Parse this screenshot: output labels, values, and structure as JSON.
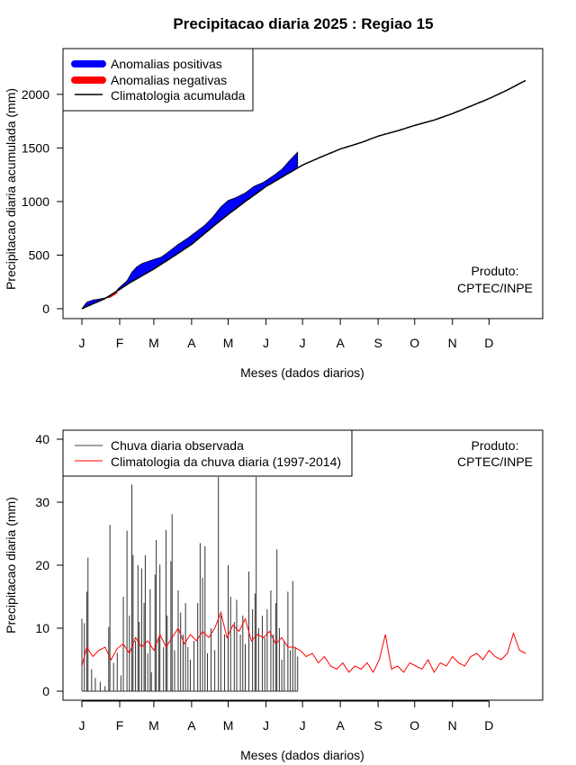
{
  "title": "Precipitacao diaria 2025 : Regiao 15",
  "months": [
    "J",
    "F",
    "M",
    "A",
    "M",
    "J",
    "J",
    "A",
    "S",
    "O",
    "N",
    "D"
  ],
  "credit": [
    "Produto:",
    "CPTEC/INPE"
  ],
  "colors": {
    "positive": "#0000ff",
    "negative": "#ff0000",
    "climatology_line": "#000000",
    "observed_bars": "#000000",
    "daily_climatology": "#ff0000"
  },
  "chart_data": [
    {
      "type": "area",
      "xlabel": "Meses (dados diarios)",
      "ylabel": "Precipitacao diaria acumulada (mm)",
      "ylim": [
        0,
        2200
      ],
      "yticks": [
        0,
        500,
        1000,
        1500,
        2000
      ],
      "xlim": [
        1,
        365
      ],
      "legend_position": "top-left",
      "legend": [
        {
          "label": "Anomalias positivas",
          "style": "thick-blue"
        },
        {
          "label": "Anomalias negativas",
          "style": "thick-red"
        },
        {
          "label": "Climatologia acumulada",
          "style": "thin-black"
        }
      ],
      "climatology_accum": {
        "day": [
          1,
          20,
          32,
          40,
          60,
          75,
          91,
          110,
          121,
          135,
          152,
          170,
          182,
          196,
          213,
          230,
          244,
          260,
          274,
          290,
          305,
          320,
          335,
          350,
          365
        ],
        "value": [
          0,
          95,
          180,
          240,
          370,
          480,
          600,
          780,
          880,
          1000,
          1140,
          1260,
          1340,
          1410,
          1490,
          1550,
          1610,
          1660,
          1710,
          1760,
          1820,
          1890,
          1960,
          2040,
          2130
        ]
      },
      "observed_accum": {
        "day": [
          1,
          5,
          10,
          15,
          20,
          25,
          32,
          38,
          42,
          46,
          50,
          55,
          60,
          66,
          72,
          80,
          88,
          95,
          102,
          108,
          115,
          121,
          128,
          135,
          142,
          150,
          158,
          165,
          172,
          178
        ],
        "value": [
          0,
          60,
          80,
          90,
          100,
          110,
          200,
          260,
          340,
          390,
          420,
          440,
          460,
          480,
          530,
          600,
          660,
          720,
          780,
          850,
          950,
          1010,
          1040,
          1080,
          1140,
          1180,
          1240,
          1300,
          1390,
          1460
        ]
      }
    },
    {
      "type": "bar",
      "xlabel": "Meses (dados diarios)",
      "ylabel": "Precipitacao diaria (mm)",
      "ylim": [
        0,
        40
      ],
      "yticks": [
        0,
        10,
        20,
        30,
        40
      ],
      "xlim": [
        1,
        365
      ],
      "legend_position": "top-left",
      "legend": [
        {
          "label": "Chuva diaria observada",
          "style": "thin-dark"
        },
        {
          "label": "Climatologia da chuva diaria (1997-2014)",
          "style": "thin-red"
        }
      ],
      "observed_daily": [
        {
          "day": 1,
          "value": 11.5
        },
        {
          "day": 3,
          "value": 10.8
        },
        {
          "day": 5,
          "value": 15.8
        },
        {
          "day": 6,
          "value": 21.2
        },
        {
          "day": 9,
          "value": 3.5
        },
        {
          "day": 12,
          "value": 2.1
        },
        {
          "day": 16,
          "value": 1.5
        },
        {
          "day": 20,
          "value": 0.8
        },
        {
          "day": 23,
          "value": 10.2
        },
        {
          "day": 24,
          "value": 26.4
        },
        {
          "day": 27,
          "value": 4.5
        },
        {
          "day": 30,
          "value": 6.1
        },
        {
          "day": 33,
          "value": 2.5
        },
        {
          "day": 35,
          "value": 15.0
        },
        {
          "day": 38,
          "value": 25.5
        },
        {
          "day": 40,
          "value": 12.0
        },
        {
          "day": 42,
          "value": 32.8
        },
        {
          "day": 43,
          "value": 21.6
        },
        {
          "day": 45,
          "value": 8.0
        },
        {
          "day": 47,
          "value": 20.0
        },
        {
          "day": 48,
          "value": 11.0
        },
        {
          "day": 50,
          "value": 19.5
        },
        {
          "day": 52,
          "value": 14.0
        },
        {
          "day": 53,
          "value": 21.6
        },
        {
          "day": 55,
          "value": 6.0
        },
        {
          "day": 57,
          "value": 16.2
        },
        {
          "day": 58,
          "value": 3.0
        },
        {
          "day": 61,
          "value": 18.5
        },
        {
          "day": 62,
          "value": 24.0
        },
        {
          "day": 64,
          "value": 8.5
        },
        {
          "day": 65,
          "value": 20.1
        },
        {
          "day": 68,
          "value": 7.0
        },
        {
          "day": 70,
          "value": 25.6
        },
        {
          "day": 71,
          "value": 12.0
        },
        {
          "day": 74,
          "value": 20.6
        },
        {
          "day": 75,
          "value": 28.1
        },
        {
          "day": 77,
          "value": 6.5
        },
        {
          "day": 80,
          "value": 16.0
        },
        {
          "day": 82,
          "value": 12.5
        },
        {
          "day": 84,
          "value": 9.0
        },
        {
          "day": 86,
          "value": 14.0
        },
        {
          "day": 88,
          "value": 7.0
        },
        {
          "day": 90,
          "value": 5.0
        },
        {
          "day": 93,
          "value": 8.0
        },
        {
          "day": 96,
          "value": 14.0
        },
        {
          "day": 98,
          "value": 23.5
        },
        {
          "day": 100,
          "value": 18.0
        },
        {
          "day": 102,
          "value": 23.0
        },
        {
          "day": 104,
          "value": 6.0
        },
        {
          "day": 107,
          "value": 10.0
        },
        {
          "day": 110,
          "value": 6.5
        },
        {
          "day": 113,
          "value": 34.0
        },
        {
          "day": 115,
          "value": 12.0
        },
        {
          "day": 118,
          "value": 9.0
        },
        {
          "day": 121,
          "value": 20.0
        },
        {
          "day": 123,
          "value": 15.0
        },
        {
          "day": 126,
          "value": 11.0
        },
        {
          "day": 128,
          "value": 14.5
        },
        {
          "day": 131,
          "value": 9.0
        },
        {
          "day": 133,
          "value": 12.0
        },
        {
          "day": 135,
          "value": 7.5
        },
        {
          "day": 138,
          "value": 19.0
        },
        {
          "day": 141,
          "value": 13.0
        },
        {
          "day": 143,
          "value": 15.5
        },
        {
          "day": 144,
          "value": 34.0
        },
        {
          "day": 146,
          "value": 10.0
        },
        {
          "day": 149,
          "value": 12.0
        },
        {
          "day": 151,
          "value": 8.5
        },
        {
          "day": 153,
          "value": 13.0
        },
        {
          "day": 156,
          "value": 16.0
        },
        {
          "day": 158,
          "value": 9.0
        },
        {
          "day": 160,
          "value": 14.0
        },
        {
          "day": 161,
          "value": 22.5
        },
        {
          "day": 163,
          "value": 10.0
        },
        {
          "day": 165,
          "value": 5.0
        },
        {
          "day": 167,
          "value": 8.0
        },
        {
          "day": 170,
          "value": 15.8
        },
        {
          "day": 172,
          "value": 6.5
        },
        {
          "day": 174,
          "value": 17.5
        },
        {
          "day": 176,
          "value": 7.0
        },
        {
          "day": 178,
          "value": 5.5
        }
      ],
      "climatology_daily": {
        "day": [
          1,
          5,
          10,
          15,
          20,
          25,
          30,
          35,
          40,
          45,
          50,
          55,
          60,
          65,
          70,
          75,
          80,
          85,
          90,
          95,
          100,
          105,
          110,
          115,
          120,
          125,
          130,
          135,
          140,
          145,
          150,
          155,
          160,
          165,
          170,
          175,
          180,
          185,
          190,
          195,
          200,
          205,
          210,
          215,
          220,
          225,
          230,
          235,
          240,
          245,
          250,
          255,
          260,
          265,
          270,
          275,
          280,
          285,
          290,
          295,
          300,
          305,
          310,
          315,
          320,
          325,
          330,
          335,
          340,
          345,
          350,
          355,
          360,
          365
        ],
        "value": [
          4.0,
          7.0,
          5.5,
          6.5,
          7.0,
          5.0,
          6.8,
          7.5,
          6.0,
          8.5,
          7.0,
          8.0,
          6.5,
          9.0,
          7.0,
          8.5,
          10.0,
          7.5,
          9.0,
          8.0,
          9.5,
          8.5,
          10.0,
          12.5,
          8.5,
          10.5,
          9.5,
          11.5,
          8.0,
          9.0,
          8.5,
          9.5,
          7.5,
          8.5,
          7.0,
          7.0,
          6.5,
          5.5,
          6.0,
          4.5,
          5.5,
          4.0,
          3.5,
          4.5,
          3.0,
          4.0,
          3.5,
          4.5,
          3.0,
          5.0,
          9.0,
          3.5,
          4.0,
          3.0,
          4.5,
          4.0,
          3.5,
          5.0,
          3.0,
          4.5,
          4.0,
          5.5,
          4.5,
          4.0,
          5.5,
          6.0,
          5.0,
          6.5,
          5.5,
          5.0,
          6.0,
          9.2,
          6.5,
          6.0
        ]
      }
    }
  ]
}
